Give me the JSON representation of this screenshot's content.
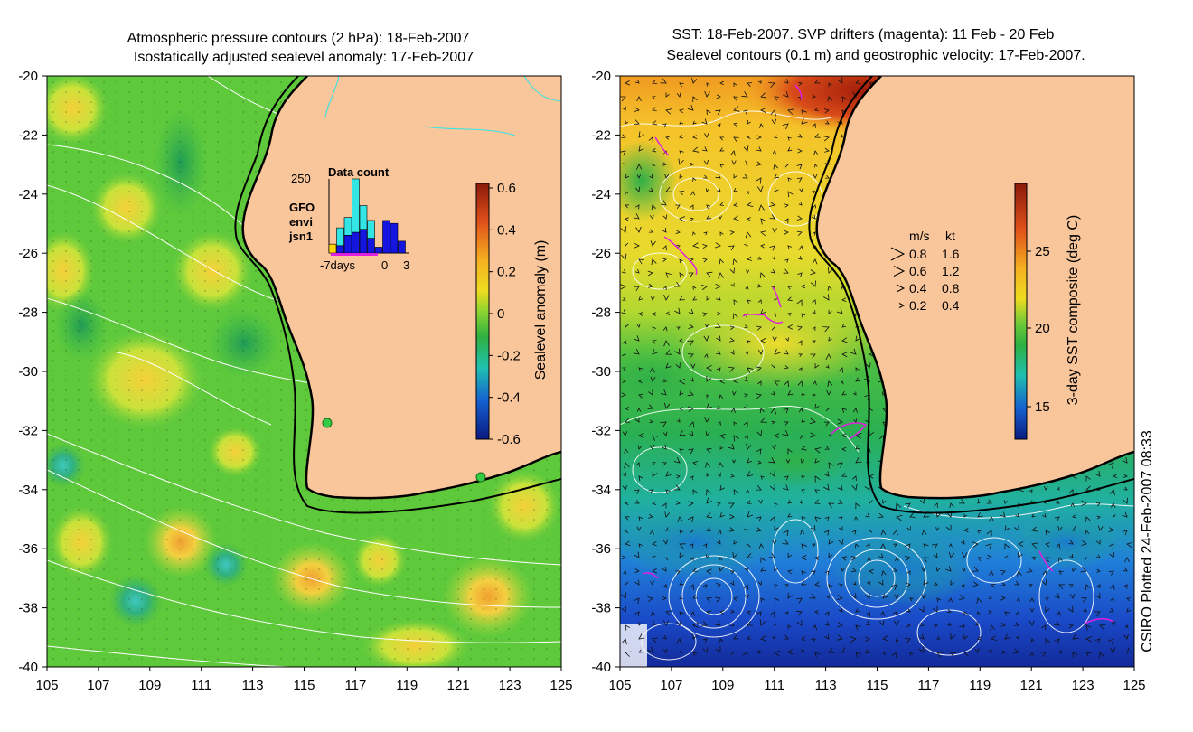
{
  "left_map": {
    "title_line1": "Atmospheric pressure contours (2 hPa): 18-Feb-2007",
    "title_line2": "Isostatically adjusted sealevel anomaly: 17-Feb-2007",
    "y_ticks": [
      "-20",
      "-22",
      "-24",
      "-26",
      "-28",
      "-30",
      "-32",
      "-34",
      "-36",
      "-38",
      "-40"
    ],
    "x_ticks": [
      "105",
      "107",
      "109",
      "111",
      "113",
      "115",
      "117",
      "119",
      "121",
      "123",
      "125"
    ],
    "colorbar": {
      "label": "Sealevel anomaly (m)",
      "ticks": [
        "0.6",
        "0.4",
        "0.2",
        "0",
        "-0.2",
        "-0.4",
        "-0.6"
      ]
    },
    "inset": {
      "title": "Data count",
      "y_max_label": "250",
      "x_labels": [
        "-7days",
        "0",
        "3"
      ],
      "legend": [
        {
          "name": "GFO",
          "color": "#ffd700"
        },
        {
          "name": "envi",
          "color": "#33e5e5"
        },
        {
          "name": "jsn1",
          "color": "#1515e0"
        }
      ],
      "bars": [
        {
          "day": -7,
          "gfo": 30,
          "envi": 0,
          "jsn1": 0
        },
        {
          "day": -6,
          "gfo": 0,
          "envi": 60,
          "jsn1": 25
        },
        {
          "day": -5,
          "gfo": 0,
          "envi": 60,
          "jsn1": 60
        },
        {
          "day": -4,
          "gfo": 0,
          "envi": 180,
          "jsn1": 70
        },
        {
          "day": -3,
          "gfo": 0,
          "envi": 80,
          "jsn1": 80
        },
        {
          "day": -2,
          "gfo": 0,
          "envi": 60,
          "jsn1": 50
        },
        {
          "day": -1,
          "gfo": 0,
          "envi": 0,
          "jsn1": 20
        },
        {
          "day": 0,
          "gfo": 0,
          "envi": 0,
          "jsn1": 110
        },
        {
          "day": 1,
          "gfo": 0,
          "envi": 0,
          "jsn1": 100
        },
        {
          "day": 2,
          "gfo": 0,
          "envi": 0,
          "jsn1": 40
        }
      ]
    },
    "tide_gauges": [
      {
        "lon": 115.75,
        "lat": -31.8
      },
      {
        "lon": 121.9,
        "lat": -33.85
      }
    ]
  },
  "right_map": {
    "title_line1": "SST: 18-Feb-2007. SVP drifters (magenta): 11 Feb - 20 Feb",
    "title_line2": "Sealevel contours (0.1 m) and geostrophic velocity: 17-Feb-2007.",
    "y_ticks": [
      "-20",
      "-22",
      "-24",
      "-26",
      "-28",
      "-30",
      "-32",
      "-34",
      "-36",
      "-38",
      "-40"
    ],
    "x_ticks": [
      "105",
      "107",
      "109",
      "111",
      "113",
      "115",
      "117",
      "119",
      "121",
      "123",
      "125"
    ],
    "colorbar": {
      "label": "3-day SST composite (deg C)",
      "ticks": [
        "25",
        "20",
        "15"
      ]
    },
    "velocity_legend": {
      "header_ms": "m/s",
      "header_kt": "kt",
      "rows": [
        {
          "ms": "0.8",
          "kt": "1.6"
        },
        {
          "ms": "0.6",
          "kt": "1.2"
        },
        {
          "ms": "0.4",
          "kt": "0.8"
        },
        {
          "ms": "0.2",
          "kt": "0.4"
        }
      ]
    }
  },
  "credit": "CSIRO Plotted 24-Feb-2007 08:33",
  "colors": {
    "land": "#f9c59a",
    "coast": "#000000",
    "contour": "#ffffff",
    "drifter": "#e020e0",
    "river": "#33e5e5"
  }
}
